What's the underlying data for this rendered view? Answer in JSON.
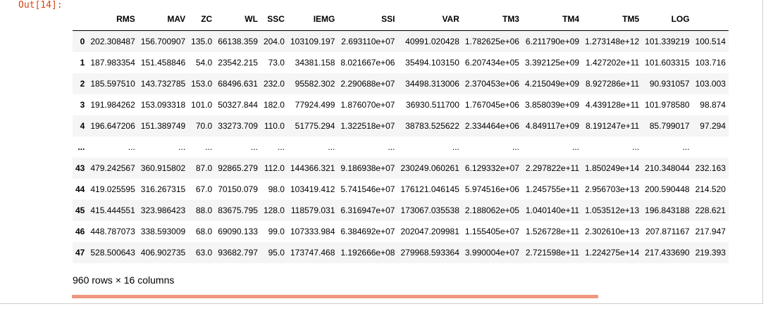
{
  "prompt": "Out[14]:",
  "columns": [
    "",
    "RMS",
    "MAV",
    "ZC",
    "WL",
    "SSC",
    "IEMG",
    "SSI",
    "VAR",
    "TM3",
    "TM4",
    "TM5",
    "LOG",
    ""
  ],
  "rows": [
    [
      "0",
      "202.308487",
      "156.700907",
      "135.0",
      "66138.359",
      "204.0",
      "103109.197",
      "2.693110e+07",
      "40991.020428",
      "1.782625e+06",
      "6.211790e+09",
      "1.273148e+12",
      "101.339219",
      "100.514"
    ],
    [
      "1",
      "187.983354",
      "151.458846",
      "54.0",
      "23542.215",
      "73.0",
      "34381.158",
      "8.021667e+06",
      "35494.103150",
      "6.207434e+05",
      "3.392125e+09",
      "1.427202e+11",
      "101.603315",
      "103.716"
    ],
    [
      "2",
      "185.597510",
      "143.732785",
      "153.0",
      "68496.631",
      "232.0",
      "95582.302",
      "2.290688e+07",
      "34498.313006",
      "2.370453e+06",
      "4.215049e+09",
      "8.927286e+11",
      "90.931057",
      "103.003"
    ],
    [
      "3",
      "191.984262",
      "153.093318",
      "101.0",
      "50327.844",
      "182.0",
      "77924.499",
      "1.876070e+07",
      "36930.511700",
      "1.767045e+06",
      "3.858039e+09",
      "4.439128e+11",
      "101.978580",
      "98.874"
    ],
    [
      "4",
      "196.647206",
      "151.389749",
      "70.0",
      "33273.709",
      "110.0",
      "51775.294",
      "1.322518e+07",
      "38783.525622",
      "2.334464e+06",
      "4.849117e+09",
      "8.191247e+11",
      "85.799017",
      "97.294"
    ],
    [
      "...",
      "...",
      "...",
      "...",
      "...",
      "...",
      "...",
      "...",
      "...",
      "...",
      "...",
      "...",
      "...",
      ""
    ],
    [
      "43",
      "479.242567",
      "360.915802",
      "87.0",
      "92865.279",
      "112.0",
      "144366.321",
      "9.186938e+07",
      "230249.060261",
      "6.129332e+07",
      "2.297822e+11",
      "1.850249e+14",
      "210.348044",
      "232.163"
    ],
    [
      "44",
      "419.025595",
      "316.267315",
      "67.0",
      "70150.079",
      "98.0",
      "103419.412",
      "5.741546e+07",
      "176121.046145",
      "5.974516e+06",
      "1.245755e+11",
      "2.956703e+13",
      "200.590448",
      "214.520"
    ],
    [
      "45",
      "415.444551",
      "323.986423",
      "88.0",
      "83675.795",
      "128.0",
      "118579.031",
      "6.316947e+07",
      "173067.035538",
      "2.188062e+05",
      "1.040140e+11",
      "1.053512e+13",
      "196.843188",
      "228.621"
    ],
    [
      "46",
      "448.787073",
      "338.593009",
      "68.0",
      "69090.133",
      "99.0",
      "107333.984",
      "6.384692e+07",
      "202047.209981",
      "1.155405e+07",
      "1.526728e+11",
      "2.302610e+13",
      "207.871167",
      "217.947"
    ],
    [
      "47",
      "528.500643",
      "406.902735",
      "63.0",
      "93682.797",
      "95.0",
      "173747.468",
      "1.192666e+08",
      "279968.593364",
      "3.990004e+07",
      "2.721598e+11",
      "1.224275e+14",
      "217.433690",
      "219.393"
    ]
  ],
  "shape_info": "960 rows × 16 columns",
  "colors": {
    "prompt": "#d84315",
    "scrollbar": "#f0977f",
    "row_stripe": "#f5f5f5"
  }
}
